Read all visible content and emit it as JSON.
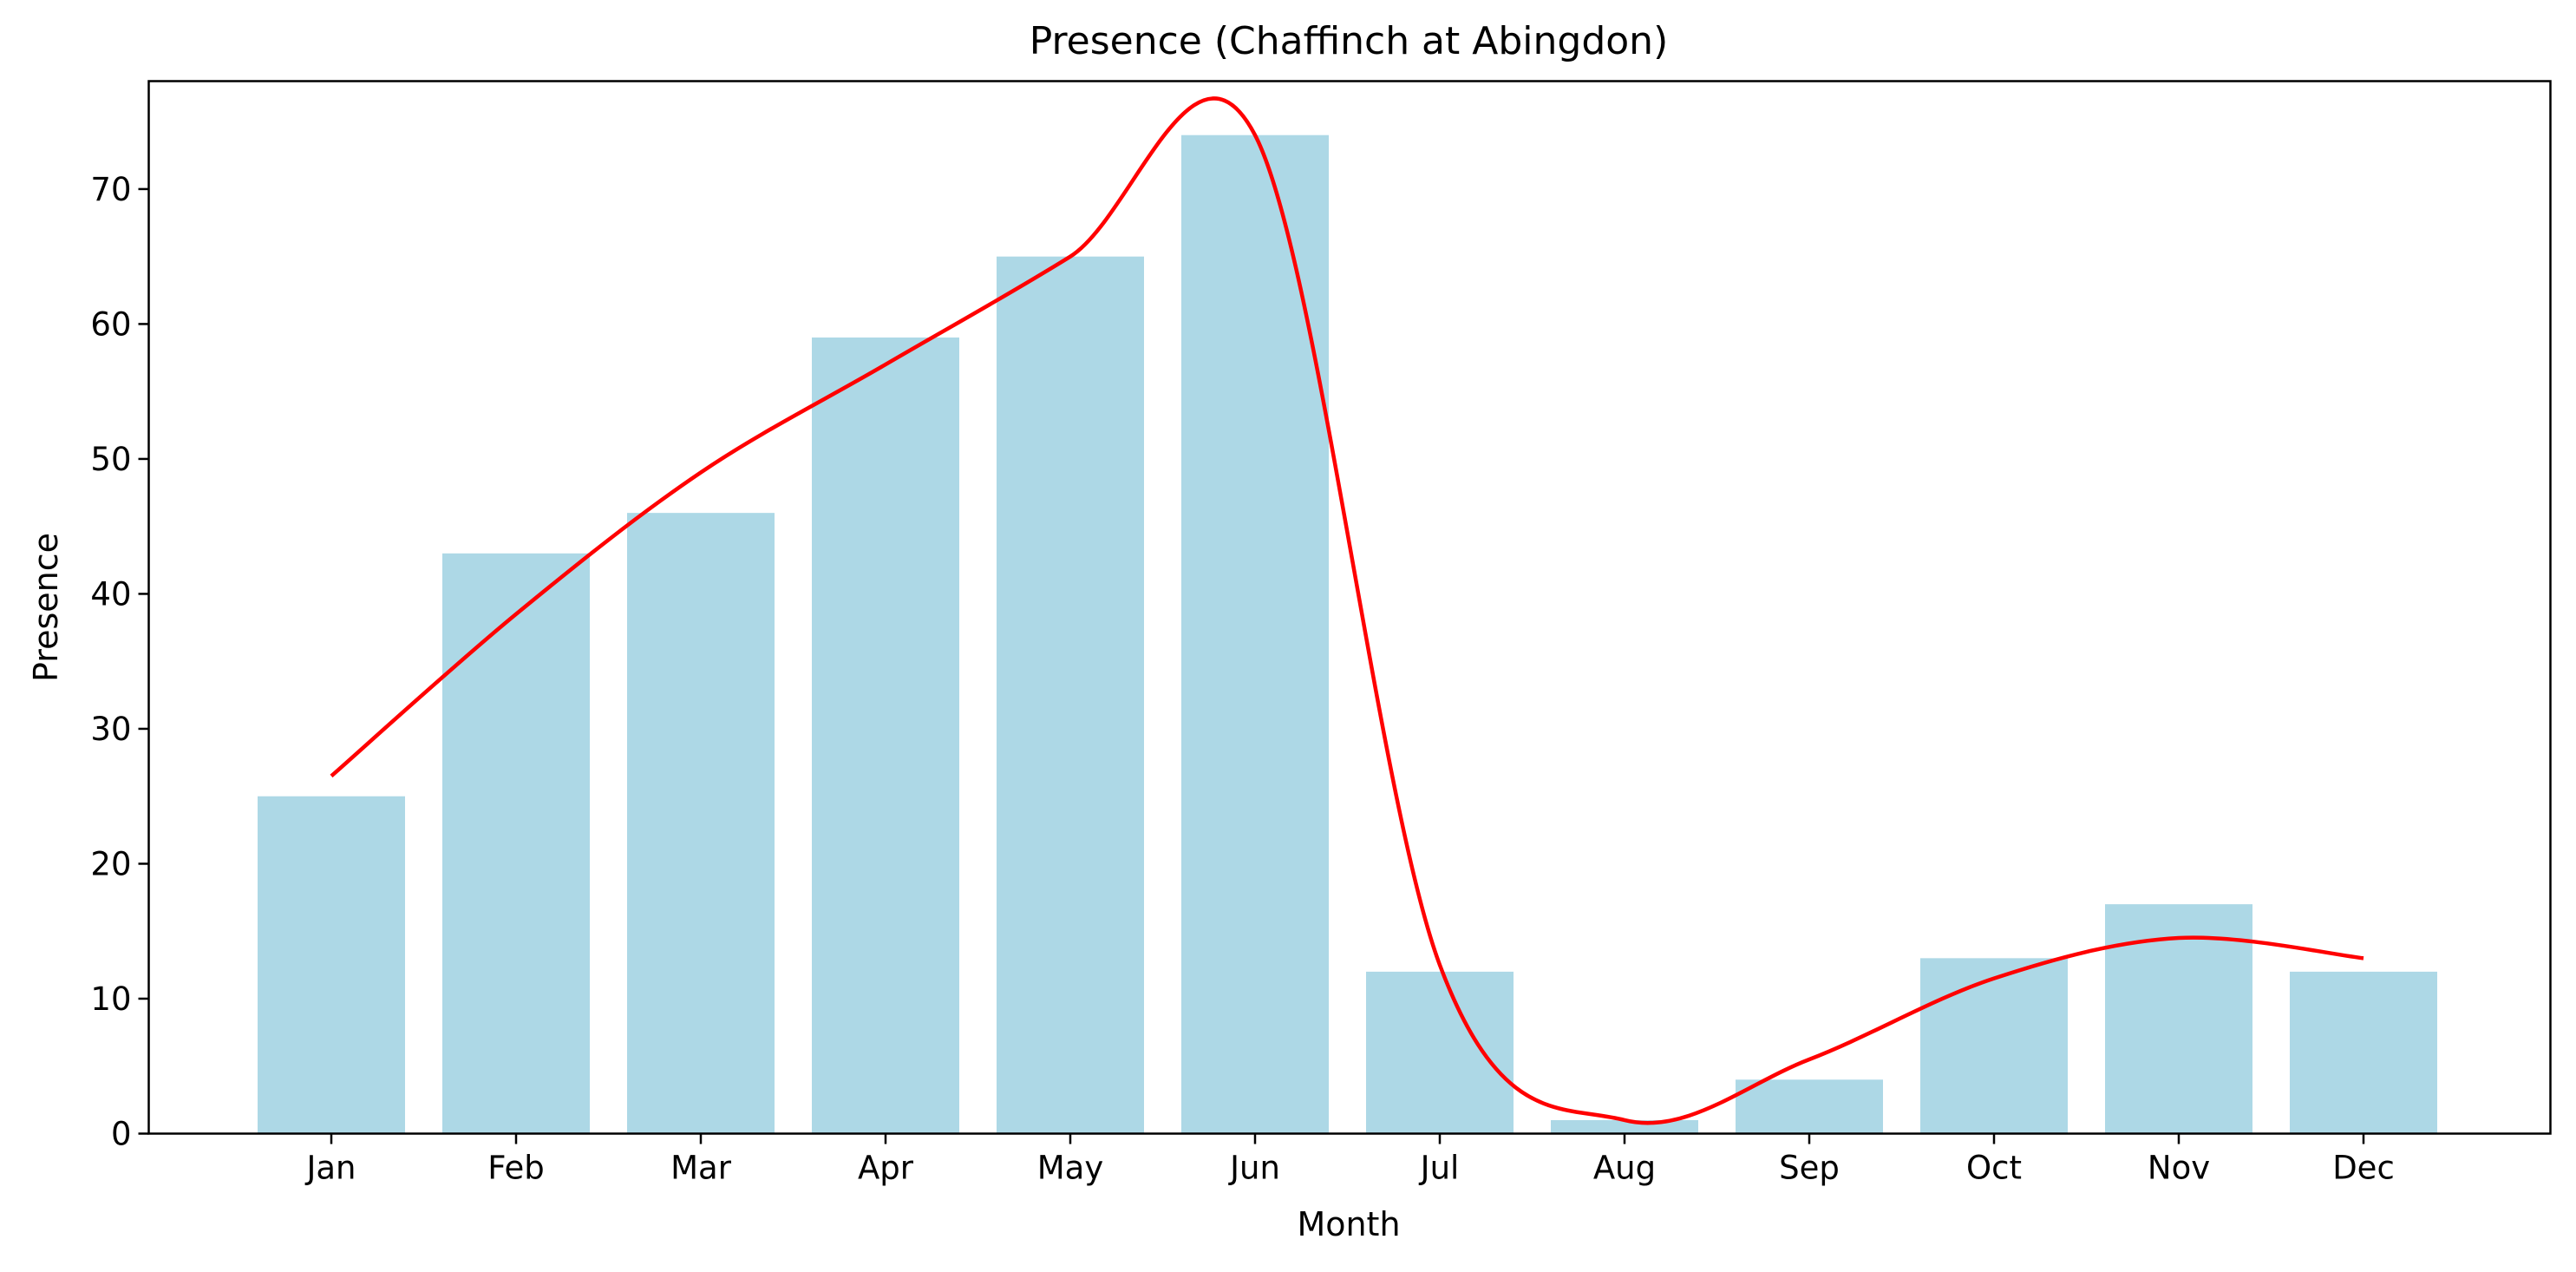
{
  "chart_data": {
    "type": "bar",
    "title": "Presence (Chaffinch at Abingdon)",
    "xlabel": "Month",
    "ylabel": "Presence",
    "categories": [
      "Jan",
      "Feb",
      "Mar",
      "Apr",
      "May",
      "Jun",
      "Jul",
      "Aug",
      "Sep",
      "Oct",
      "Nov",
      "Dec"
    ],
    "values": [
      25,
      43,
      46,
      59,
      65,
      74,
      12,
      1,
      4,
      13,
      17,
      12
    ],
    "trend_line": {
      "type": "smooth-line",
      "values": [
        26.5,
        38.5,
        49,
        57,
        65,
        74,
        12.5,
        1,
        5.5,
        11.5,
        14.5,
        13
      ]
    },
    "ylim": [
      0,
      78
    ],
    "yticks": [
      0,
      10,
      20,
      30,
      40,
      50,
      60,
      70
    ],
    "grid": false,
    "colors": {
      "bars": "#add8e6",
      "trend_line": "#ff0000",
      "axes": "#000000"
    }
  }
}
